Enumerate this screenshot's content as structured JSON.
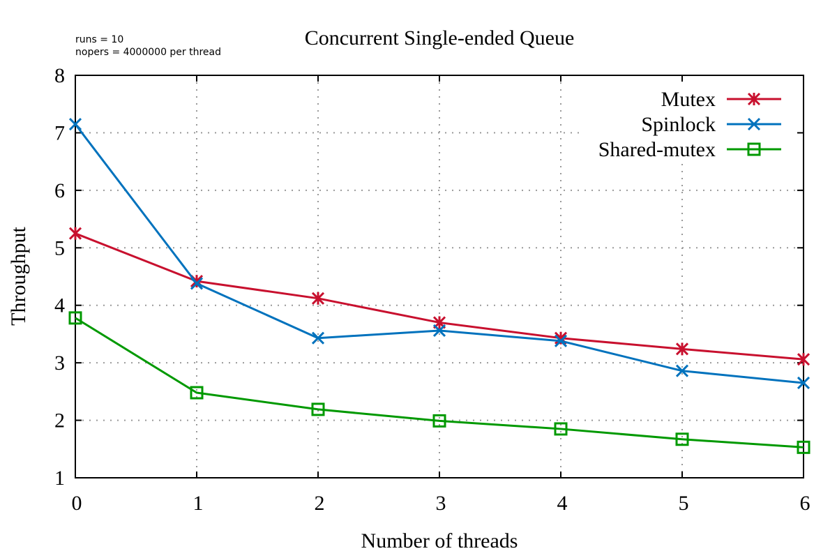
{
  "chart_data": {
    "type": "line",
    "title": "Concurrent Single-ended Queue",
    "annotations": [
      "runs = 10",
      "nopers = 4000000 per thread"
    ],
    "xlabel": "Number of threads",
    "ylabel": "Throughput",
    "xlim": [
      0,
      6
    ],
    "ylim": [
      1,
      8
    ],
    "x_ticks": [
      "0",
      "1",
      "2",
      "3",
      "4",
      "5",
      "6"
    ],
    "y_ticks": [
      "1",
      "2",
      "3",
      "4",
      "5",
      "6",
      "7",
      "8"
    ],
    "grid": true,
    "legend_position": "top-right",
    "x": [
      0,
      1,
      2,
      3,
      4,
      5,
      6
    ],
    "series": [
      {
        "name": "Mutex",
        "color": "#c8102e",
        "marker": "asterisk-icon",
        "values": [
          5.25,
          4.42,
          4.12,
          3.7,
          3.43,
          3.24,
          3.06
        ]
      },
      {
        "name": "Spinlock",
        "color": "#0072bd",
        "marker": "cross-icon",
        "values": [
          7.15,
          4.38,
          3.43,
          3.56,
          3.38,
          2.86,
          2.65
        ]
      },
      {
        "name": "Shared-mutex",
        "color": "#009900",
        "marker": "square-icon",
        "values": [
          3.78,
          2.48,
          2.19,
          1.99,
          1.85,
          1.67,
          1.53
        ]
      }
    ]
  }
}
